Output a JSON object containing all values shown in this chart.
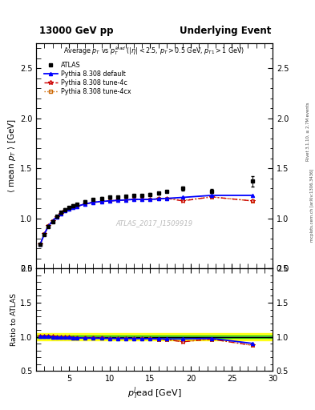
{
  "title_left": "13000 GeV pp",
  "title_right": "Underlying Event",
  "plot_title": "Average $p_T$ vs $p_T^{lead}$ ($|\\eta| < 2.5$, $p_T > 0.5$ GeV, $p_{T1} > 1$ GeV)",
  "xlabel": "$p_T^l\\!$ead [GeV]",
  "ylabel_main": "$\\langle$ mean $p_T$ $\\rangle$ [GeV]",
  "ylabel_ratio": "Ratio to ATLAS",
  "watermark": "ATLAS_2017_I1509919",
  "right_label": "mcplots.cern.ch [arXiv:1306.3436]",
  "rivet_label": "Rivet 3.1.10, ≥ 2.7M events",
  "xlim": [
    1,
    30
  ],
  "ylim_main": [
    0.5,
    2.75
  ],
  "ylim_ratio": [
    0.5,
    2.0
  ],
  "yticks_main": [
    0.5,
    1.0,
    1.5,
    2.0,
    2.5
  ],
  "yticks_ratio": [
    0.5,
    1.0,
    1.5,
    2.0
  ],
  "data_x": [
    1.5,
    2.0,
    2.5,
    3.0,
    3.5,
    4.0,
    4.5,
    5.0,
    5.5,
    6.0,
    7.0,
    8.0,
    9.0,
    10.0,
    11.0,
    12.0,
    13.0,
    14.0,
    15.0,
    16.0,
    17.0,
    19.0,
    22.5,
    27.5
  ],
  "data_y": [
    0.74,
    0.84,
    0.92,
    0.97,
    1.02,
    1.06,
    1.09,
    1.11,
    1.13,
    1.14,
    1.17,
    1.19,
    1.2,
    1.21,
    1.21,
    1.22,
    1.23,
    1.23,
    1.24,
    1.25,
    1.27,
    1.3,
    1.27,
    1.37
  ],
  "data_yerr": [
    0.01,
    0.01,
    0.01,
    0.01,
    0.01,
    0.01,
    0.01,
    0.01,
    0.01,
    0.01,
    0.01,
    0.01,
    0.01,
    0.01,
    0.01,
    0.01,
    0.01,
    0.01,
    0.01,
    0.01,
    0.01,
    0.02,
    0.02,
    0.05
  ],
  "pythia_default_x": [
    1.5,
    2.0,
    2.5,
    3.0,
    3.5,
    4.0,
    4.5,
    5.0,
    5.5,
    6.0,
    7.0,
    8.0,
    9.0,
    10.0,
    11.0,
    12.0,
    13.0,
    14.0,
    15.0,
    16.0,
    17.0,
    19.0,
    22.5,
    27.5
  ],
  "pythia_default_y": [
    0.745,
    0.845,
    0.925,
    0.975,
    1.015,
    1.05,
    1.075,
    1.095,
    1.11,
    1.12,
    1.145,
    1.16,
    1.17,
    1.175,
    1.18,
    1.185,
    1.19,
    1.19,
    1.19,
    1.195,
    1.2,
    1.21,
    1.23,
    1.23
  ],
  "pythia_4c_x": [
    1.5,
    2.0,
    2.5,
    3.0,
    3.5,
    4.0,
    4.5,
    5.0,
    5.5,
    6.0,
    7.0,
    8.0,
    9.0,
    10.0,
    11.0,
    12.0,
    13.0,
    14.0,
    15.0,
    16.0,
    17.0,
    19.0,
    22.5,
    27.5
  ],
  "pythia_4c_y": [
    0.745,
    0.845,
    0.93,
    0.975,
    1.015,
    1.05,
    1.075,
    1.095,
    1.11,
    1.12,
    1.145,
    1.16,
    1.17,
    1.175,
    1.18,
    1.185,
    1.19,
    1.19,
    1.19,
    1.195,
    1.2,
    1.175,
    1.215,
    1.175
  ],
  "pythia_4cx_x": [
    1.5,
    2.0,
    2.5,
    3.0,
    3.5,
    4.0,
    4.5,
    5.0,
    5.5,
    6.0,
    7.0,
    8.0,
    9.0,
    10.0,
    11.0,
    12.0,
    13.0,
    14.0,
    15.0,
    16.0,
    17.0,
    19.0,
    22.5,
    27.5
  ],
  "pythia_4cx_y": [
    0.745,
    0.845,
    0.925,
    0.975,
    1.015,
    1.05,
    1.075,
    1.095,
    1.11,
    1.12,
    1.145,
    1.16,
    1.17,
    1.175,
    1.18,
    1.185,
    1.19,
    1.19,
    1.19,
    1.195,
    1.2,
    1.18,
    1.215,
    1.175
  ],
  "ratio_default_y": [
    1.005,
    1.005,
    1.003,
    1.002,
    0.997,
    0.993,
    0.991,
    0.991,
    0.99,
    0.985,
    0.982,
    0.981,
    0.979,
    0.978,
    0.977,
    0.977,
    0.976,
    0.975,
    0.974,
    0.974,
    0.97,
    0.97,
    0.978,
    0.905
  ],
  "ratio_4c_y": [
    1.005,
    1.005,
    1.008,
    1.006,
    0.995,
    0.993,
    0.991,
    0.991,
    0.99,
    0.985,
    0.982,
    0.981,
    0.979,
    0.978,
    0.977,
    0.977,
    0.976,
    0.975,
    0.974,
    0.966,
    0.961,
    0.928,
    0.967,
    0.877
  ],
  "ratio_4cx_y": [
    1.005,
    1.005,
    1.003,
    1.002,
    0.995,
    0.993,
    0.991,
    0.991,
    0.99,
    0.985,
    0.982,
    0.981,
    0.979,
    0.978,
    0.977,
    0.977,
    0.976,
    0.975,
    0.974,
    0.966,
    0.961,
    0.932,
    0.967,
    0.877
  ],
  "color_data": "#000000",
  "color_default": "#0000ff",
  "color_4c": "#cc0000",
  "color_4cx": "#cc6600",
  "band_color_yellow": "#ffff00",
  "band_color_green": "#00cc00"
}
